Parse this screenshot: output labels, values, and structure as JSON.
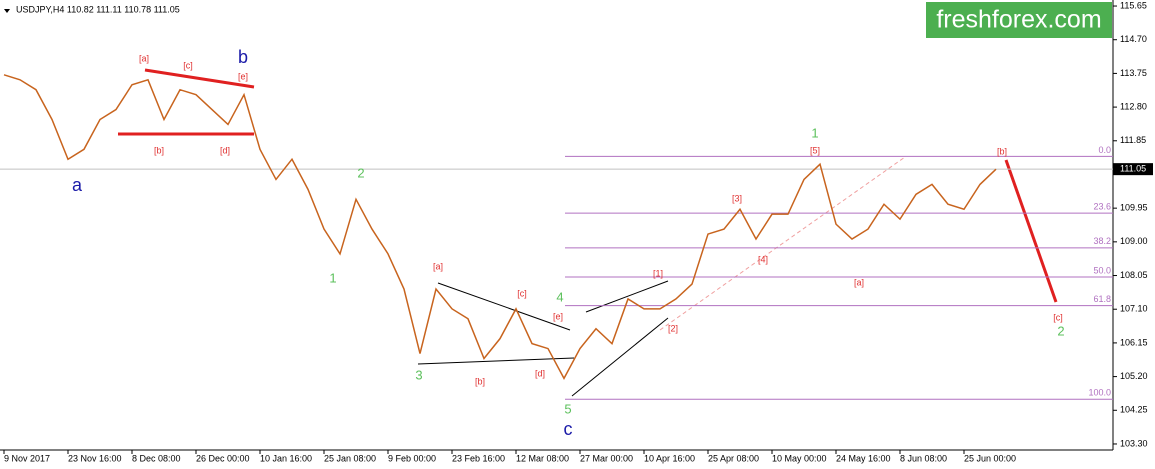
{
  "chart_data": {
    "type": "line",
    "title": "USDJPY,H4  110.82 111.11 110.78 111.05",
    "brand": "freshforex.com",
    "categories": [
      "9 Nov 2017",
      null,
      null,
      null,
      "23 Nov 16:00",
      null,
      null,
      null,
      "8 Dec 08:00",
      null,
      null,
      null,
      "26 Dec 00:00",
      null,
      null,
      null,
      "10 Jan 16:00",
      null,
      null,
      null,
      "25 Jan 08:00",
      null,
      null,
      null,
      "9 Feb 00:00",
      null,
      null,
      null,
      "23 Feb 16:00",
      null,
      null,
      null,
      "12 Mar 08:00",
      null,
      null,
      null,
      "27 Mar 00:00",
      null,
      null,
      null,
      "10 Apr 16:00",
      null,
      null,
      null,
      "25 Apr 08:00",
      null,
      null,
      null,
      "10 May 00:00",
      null,
      null,
      null,
      "24 May 16:00",
      null,
      null,
      null,
      "8 Jun 08:00",
      null,
      null,
      null,
      "25 Jun 00:00",
      null,
      null
    ],
    "series": [
      {
        "name": "USDJPY",
        "color": "#c8641e",
        "values": [
          113.71,
          113.57,
          113.29,
          112.45,
          111.33,
          111.61,
          112.45,
          112.73,
          113.43,
          113.57,
          112.45,
          113.29,
          113.15,
          112.73,
          112.31,
          113.15,
          111.61,
          110.76,
          111.33,
          110.48,
          109.36,
          108.66,
          110.2,
          109.36,
          108.66,
          107.67,
          105.85,
          107.67,
          107.11,
          106.83,
          105.71,
          106.27,
          107.11,
          106.13,
          105.99,
          105.15,
          105.99,
          106.55,
          106.13,
          107.39,
          107.11,
          107.11,
          107.39,
          107.81,
          109.22,
          109.36,
          109.92,
          109.08,
          109.78,
          109.78,
          110.76,
          111.19,
          109.5,
          109.08,
          109.36,
          110.06,
          109.64,
          110.34,
          110.62,
          110.06,
          109.92,
          110.62,
          111.05
        ]
      }
    ],
    "current_price": {
      "value": 111.05,
      "label": "111.05"
    },
    "ylim": [
      103.13,
      115.82
    ],
    "yticks": [
      115.65,
      114.7,
      113.75,
      112.8,
      111.85,
      109.95,
      109.0,
      108.05,
      107.1,
      106.15,
      105.2,
      104.25,
      103.3
    ],
    "ytick_labels": [
      "115.65",
      "114.70",
      "113.75",
      "112.80",
      "111.85",
      "109.95",
      "109.00",
      "108.05",
      "107.10",
      "106.15",
      "105.20",
      "104.25",
      "103.30"
    ],
    "fib_levels": [
      {
        "value": 111.41,
        "label": "0.0"
      },
      {
        "value": 109.81,
        "label": "23.6"
      },
      {
        "value": 108.83,
        "label": "38.2"
      },
      {
        "value": 108.01,
        "label": "50.0"
      },
      {
        "value": 107.2,
        "label": "61.8"
      },
      {
        "value": 104.56,
        "label": "100.0"
      }
    ],
    "fib_color": "#b070c0",
    "annotations": [
      {
        "text": "a",
        "color": "#1a1aa8"
      },
      {
        "text": "b",
        "color": "#1a1aa8"
      },
      {
        "text": "c",
        "color": "#1a1aa8"
      },
      {
        "text": "[a]",
        "color": "#e03030"
      },
      {
        "text": "[c]",
        "color": "#e03030"
      },
      {
        "text": "[e]",
        "color": "#e03030"
      },
      {
        "text": "[b]",
        "color": "#e03030"
      },
      {
        "text": "[d]",
        "color": "#e03030"
      },
      {
        "text": "[a]",
        "color": "#e03030"
      },
      {
        "text": "[c]",
        "color": "#e03030"
      },
      {
        "text": "[e]",
        "color": "#e03030"
      },
      {
        "text": "[b]",
        "color": "#e03030"
      },
      {
        "text": "[d]",
        "color": "#e03030"
      },
      {
        "text": "[1]",
        "color": "#e03030"
      },
      {
        "text": "[2]",
        "color": "#e03030"
      },
      {
        "text": "[3]",
        "color": "#e03030"
      },
      {
        "text": "[4]",
        "color": "#e03030"
      },
      {
        "text": "[5]",
        "color": "#e03030"
      },
      {
        "text": "[a]",
        "color": "#e03030"
      },
      {
        "text": "[b]",
        "color": "#e03030"
      },
      {
        "text": "[c]",
        "color": "#e03030"
      },
      {
        "text": "2",
        "color": "#5cc05c"
      },
      {
        "text": "1",
        "color": "#5cc05c"
      },
      {
        "text": "3",
        "color": "#5cc05c"
      },
      {
        "text": "4",
        "color": "#5cc05c"
      },
      {
        "text": "5",
        "color": "#5cc05c"
      },
      {
        "text": "1",
        "color": "#5cc05c"
      },
      {
        "text": "2",
        "color": "#5cc05c"
      }
    ]
  }
}
